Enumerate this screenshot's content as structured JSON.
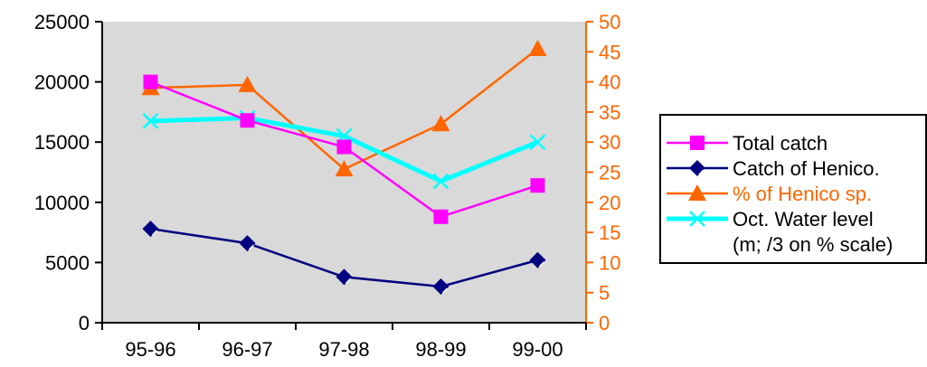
{
  "chart_data": {
    "type": "line",
    "categories": [
      "95-96",
      "96-97",
      "97-98",
      "98-99",
      "99-00"
    ],
    "y_left": {
      "ylim": [
        0,
        25000
      ],
      "ticks": [
        "0",
        "5000",
        "10000",
        "15000",
        "20000",
        "25000"
      ],
      "color": "#000000"
    },
    "y_right": {
      "ylim": [
        0,
        50
      ],
      "ticks": [
        "0",
        "5",
        "10",
        "15",
        "20",
        "25",
        "30",
        "35",
        "40",
        "45",
        "50"
      ],
      "color": "#FF6600"
    },
    "grid": false,
    "plot_background": "#D9D9D9",
    "legend_position": "right",
    "series": [
      {
        "name": "Total catch",
        "axis": "left",
        "color": "#FF00FF",
        "marker": "square",
        "values": [
          20000,
          16800,
          14600,
          8800,
          11400
        ]
      },
      {
        "name": "Catch of Henico.",
        "axis": "left",
        "color": "#000080",
        "marker": "diamond",
        "values": [
          7800,
          6600,
          3800,
          3000,
          5200
        ]
      },
      {
        "name": "% of Henico sp.",
        "axis": "right",
        "color": "#FF6600",
        "marker": "triangle",
        "values": [
          39,
          39.5,
          25.5,
          33,
          45.5
        ]
      },
      {
        "name": "Oct. Water level",
        "name_line2": "(m; /3 on % scale)",
        "axis": "right",
        "color": "#00FFFF",
        "marker": "x",
        "values": [
          33.5,
          34,
          31,
          23.5,
          30
        ]
      }
    ]
  }
}
